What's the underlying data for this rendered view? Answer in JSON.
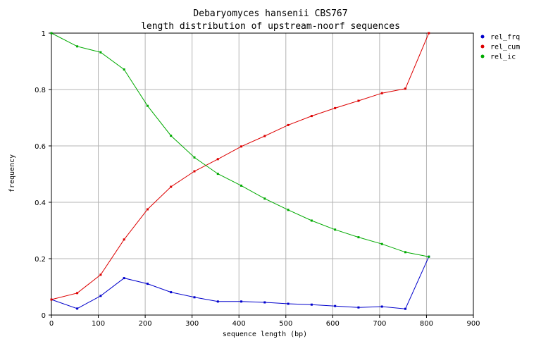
{
  "chart_data": {
    "type": "line",
    "title": "Debaryomyces hansenii CBS767",
    "subtitle": "length distribution of upstream-noorf sequences",
    "xlabel": "sequence length (bp)",
    "ylabel": "frequency",
    "xlim": [
      0,
      900
    ],
    "ylim": [
      0,
      1
    ],
    "x_ticks": [
      "0",
      "100",
      "200",
      "300",
      "400",
      "500",
      "600",
      "700",
      "800",
      "900"
    ],
    "y_ticks": [
      "0",
      "0.2",
      "0.4",
      "0.6",
      "0.8",
      "1"
    ],
    "grid": true,
    "legend_position": "top-right",
    "x": [
      0,
      55,
      105,
      155,
      205,
      255,
      305,
      355,
      405,
      455,
      505,
      555,
      605,
      655,
      705,
      755,
      805
    ],
    "series": [
      {
        "name": "rel_frq",
        "color": "#0000cc",
        "values": [
          0.055,
          0.023,
          0.068,
          0.131,
          0.111,
          0.081,
          0.063,
          0.048,
          0.048,
          0.045,
          0.04,
          0.037,
          0.032,
          0.027,
          0.03,
          0.022,
          0.207
        ]
      },
      {
        "name": "rel_cum",
        "color": "#dd0000",
        "values": [
          0.055,
          0.078,
          0.143,
          0.268,
          0.375,
          0.455,
          0.51,
          0.553,
          0.598,
          0.635,
          0.674,
          0.706,
          0.734,
          0.76,
          0.787,
          0.803,
          1.0
        ]
      },
      {
        "name": "rel_ic",
        "color": "#00aa00",
        "values": [
          1.0,
          0.953,
          0.932,
          0.871,
          0.742,
          0.636,
          0.559,
          0.501,
          0.459,
          0.413,
          0.373,
          0.335,
          0.303,
          0.276,
          0.252,
          0.223,
          0.207
        ]
      }
    ]
  }
}
